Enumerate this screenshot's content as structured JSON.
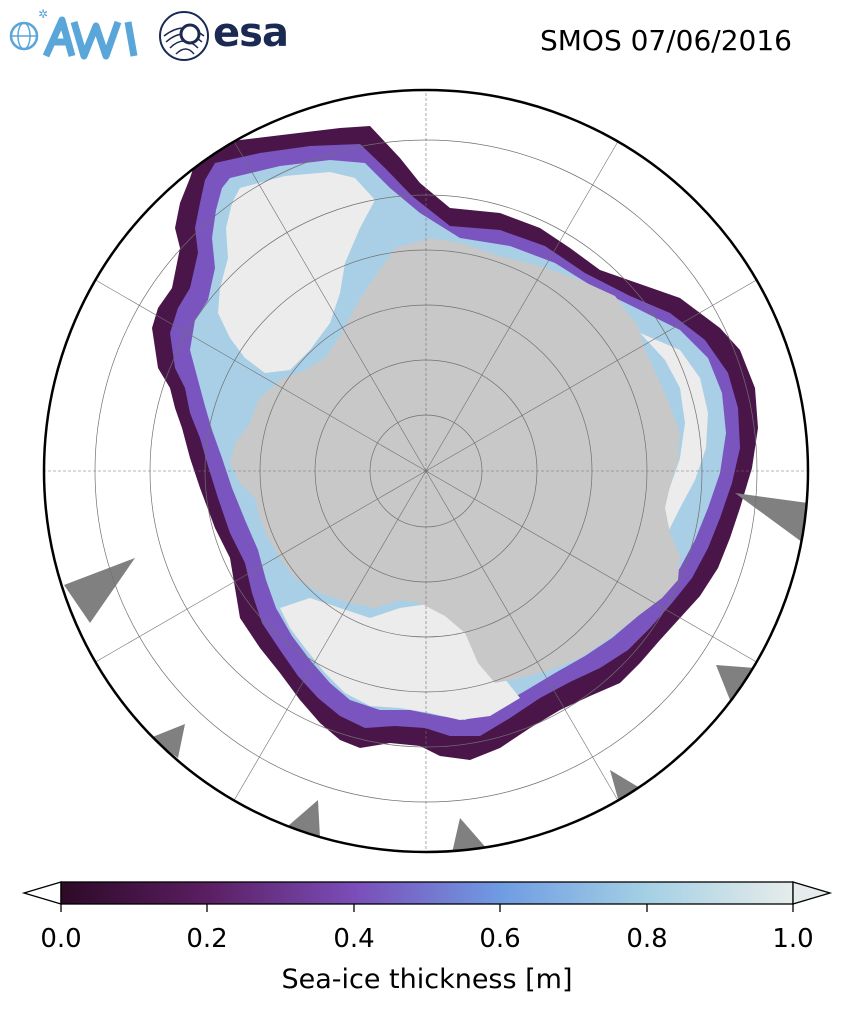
{
  "header": {
    "title": "SMOS 07/06/2016",
    "logo_awi": "AWI",
    "logo_esa": "esa"
  },
  "map": {
    "projection": "south-polar-stereographic",
    "colors": {
      "land": "#c8c8c8",
      "thick_ice": "#ececec",
      "no_data": "#808080",
      "frame": "#000000",
      "grid": "#707070"
    }
  },
  "colorbar": {
    "min": 0.0,
    "max": 1.0,
    "ticks": [
      "0.0",
      "0.2",
      "0.4",
      "0.6",
      "0.8",
      "1.0"
    ],
    "label": "Sea-ice thickness [m]",
    "colors": [
      "#2d0a26",
      "#5a1e62",
      "#7a4db8",
      "#6f9be3",
      "#a4d0e4",
      "#e6eceb"
    ],
    "extend": "both"
  }
}
